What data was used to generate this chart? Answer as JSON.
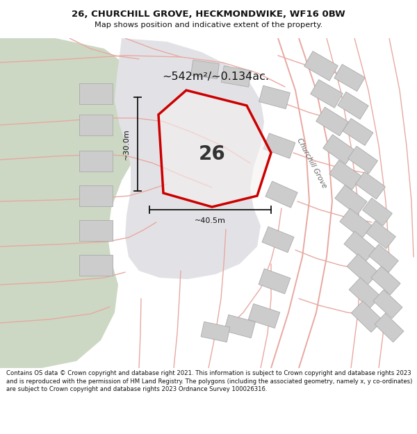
{
  "title_line1": "26, CHURCHILL GROVE, HECKMONDWIKE, WF16 0BW",
  "title_line2": "Map shows position and indicative extent of the property.",
  "footer_text": "Contains OS data © Crown copyright and database right 2021. This information is subject to Crown copyright and database rights 2023 and is reproduced with the permission of HM Land Registry. The polygons (including the associated geometry, namely x, y co-ordinates) are subject to Crown copyright and database rights 2023 Ordnance Survey 100026316.",
  "area_label": "~542m²/~0.134ac.",
  "width_label": "~40.5m",
  "height_label": "~30.0m",
  "plot_number": "26",
  "road_label": "Churchill Grove",
  "green_color": "#ccd8c4",
  "white_zone_color": "#e8e8e8",
  "map_bg_color": "#f2f2f2",
  "road_line_color": "#e8a8a0",
  "building_color": "#cccccc",
  "building_edge_color": "#aaaaaa",
  "plot_border_color": "#cc0000",
  "dim_line_color": "#111111",
  "title_color": "#111111",
  "footer_color": "#111111",
  "header_bg": "#ffffff",
  "footer_bg": "#ffffff"
}
